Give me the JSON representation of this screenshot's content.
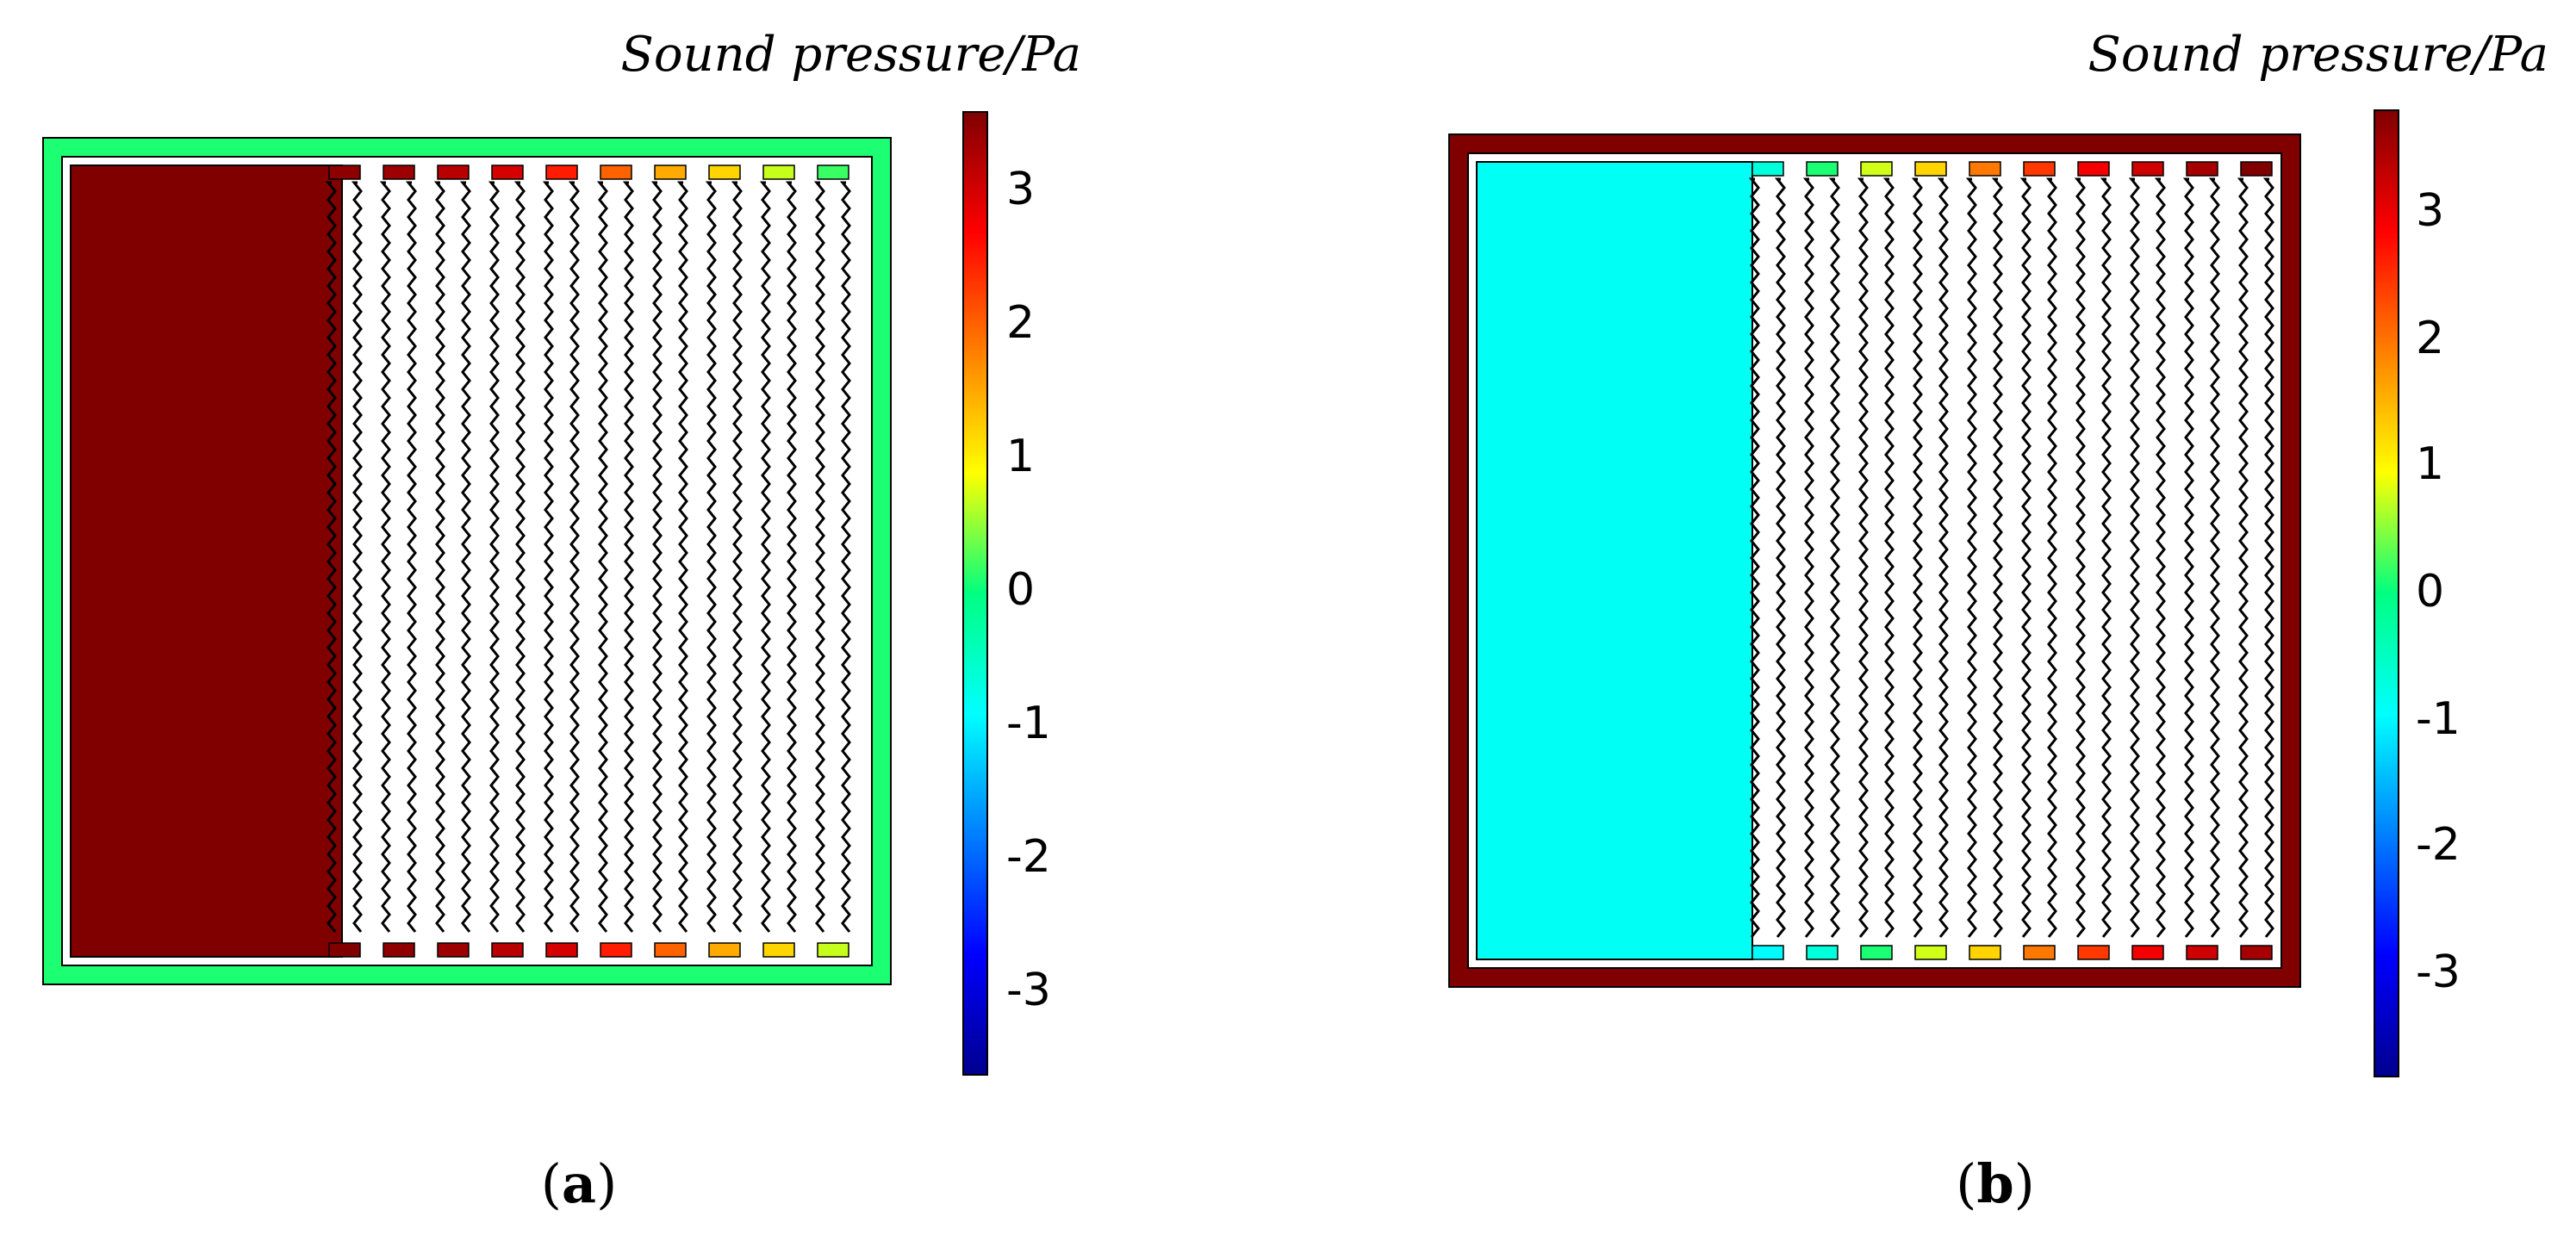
{
  "panels": [
    {
      "id": "a",
      "caption_open": "(",
      "caption_letter": "a",
      "caption_close": ")",
      "colorbar_title": "Sound pressure/Pa",
      "colorbar_ticks": [
        "3",
        "2",
        "1",
        "0",
        "-1",
        "-2",
        "-3"
      ],
      "colorbar_range": [
        -3.6,
        3.6
      ],
      "field": {
        "frame_value": 0.1,
        "large_block_value": 3.6,
        "top_cells": [
          3.5,
          3.4,
          3.2,
          3.0,
          2.5,
          2.0,
          1.5,
          1.2,
          0.7,
          0.2
        ],
        "bottom_cells": [
          3.6,
          3.5,
          3.4,
          3.2,
          3.0,
          2.5,
          2.0,
          1.5,
          1.2,
          0.7
        ]
      }
    },
    {
      "id": "b",
      "caption_open": "(",
      "caption_letter": "b",
      "caption_close": ")",
      "colorbar_title": "Sound pressure/Pa",
      "colorbar_ticks": [
        "3",
        "2",
        "1",
        "0",
        "-1",
        "-2",
        "-3"
      ],
      "colorbar_range": [
        -3.9,
        3.9
      ],
      "field": {
        "frame_value": 3.9,
        "large_block_value": -0.9,
        "top_cells": [
          -0.7,
          0.1,
          0.8,
          1.3,
          2.0,
          2.5,
          3.0,
          3.3,
          3.6,
          3.9
        ],
        "bottom_cells": [
          -1.0,
          -0.7,
          0.1,
          0.8,
          1.3,
          2.0,
          2.5,
          3.0,
          3.3,
          3.6
        ]
      }
    }
  ]
}
